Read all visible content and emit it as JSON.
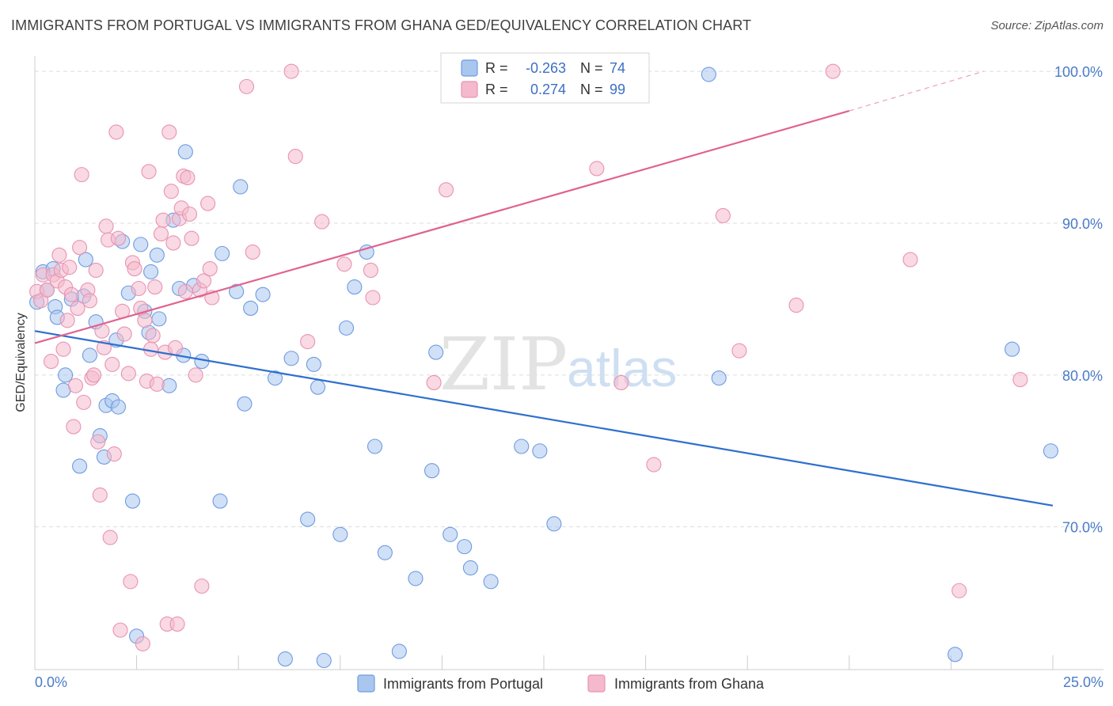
{
  "title": "IMMIGRANTS FROM PORTUGAL VS IMMIGRANTS FROM GHANA GED/EQUIVALENCY CORRELATION CHART",
  "source": "Source: ZipAtlas.com",
  "watermark": {
    "zip": "ZIP",
    "atlas": "atlas"
  },
  "colors": {
    "portugal_fill": "#a9c6ef",
    "portugal_stroke": "#6f9be0",
    "portugal_line": "#2e6fce",
    "ghana_fill": "#f4b9cc",
    "ghana_stroke": "#e993b1",
    "ghana_line": "#e0638f",
    "tick_color": "#4a7cc7",
    "grid": "#dddddd"
  },
  "legend_box": {
    "rows": [
      {
        "r_label": "R =",
        "r_value": "-0.263",
        "n_label": "N =",
        "n_value": "74"
      },
      {
        "r_label": "R =",
        "r_value": "0.274",
        "n_label": "N =",
        "n_value": "99"
      }
    ]
  },
  "chart_data": {
    "type": "scatter",
    "xlabel": "",
    "ylabel": "GED/Equivalency",
    "xlim": [
      0,
      25
    ],
    "ylim": [
      60.6,
      101.0
    ],
    "x_tick_labels": [
      "0.0%",
      "25.0%"
    ],
    "y_ticks": [
      70,
      80,
      90,
      100
    ],
    "y_tick_labels": [
      "70.0%",
      "80.0%",
      "90.0%",
      "100.0%"
    ],
    "grid": "horizontal dashed",
    "legend_position": "bottom",
    "series": [
      {
        "name": "Immigrants from Portugal",
        "color": "#a9c6ef",
        "r": -0.263,
        "n": 74,
        "trend": {
          "x": [
            0,
            25
          ],
          "y": [
            82.9,
            71.4
          ]
        },
        "points": [
          [
            0.05,
            84.8
          ],
          [
            0.2,
            86.8
          ],
          [
            0.3,
            85.6
          ],
          [
            0.45,
            87.0
          ],
          [
            0.5,
            84.5
          ],
          [
            0.55,
            83.8
          ],
          [
            0.7,
            79.0
          ],
          [
            0.75,
            80.0
          ],
          [
            0.9,
            85.0
          ],
          [
            1.1,
            74.0
          ],
          [
            1.2,
            85.2
          ],
          [
            1.25,
            87.6
          ],
          [
            1.35,
            81.3
          ],
          [
            1.5,
            83.5
          ],
          [
            1.6,
            76.0
          ],
          [
            1.7,
            74.6
          ],
          [
            1.75,
            78.0
          ],
          [
            1.9,
            78.3
          ],
          [
            2.0,
            82.3
          ],
          [
            2.05,
            77.9
          ],
          [
            2.15,
            88.8
          ],
          [
            2.3,
            85.4
          ],
          [
            2.4,
            71.7
          ],
          [
            2.5,
            62.8
          ],
          [
            2.6,
            88.6
          ],
          [
            2.7,
            84.2
          ],
          [
            2.8,
            82.8
          ],
          [
            2.85,
            86.8
          ],
          [
            3.0,
            87.9
          ],
          [
            3.05,
            83.7
          ],
          [
            3.3,
            79.3
          ],
          [
            3.4,
            90.2
          ],
          [
            3.55,
            85.7
          ],
          [
            3.65,
            81.3
          ],
          [
            3.7,
            94.7
          ],
          [
            3.9,
            85.9
          ],
          [
            4.1,
            80.9
          ],
          [
            4.55,
            71.7
          ],
          [
            4.6,
            88.0
          ],
          [
            4.95,
            85.5
          ],
          [
            5.05,
            92.4
          ],
          [
            5.15,
            78.1
          ],
          [
            5.3,
            84.4
          ],
          [
            5.6,
            85.3
          ],
          [
            5.9,
            79.8
          ],
          [
            6.15,
            61.3
          ],
          [
            6.3,
            81.1
          ],
          [
            6.7,
            70.5
          ],
          [
            6.85,
            80.7
          ],
          [
            6.95,
            79.2
          ],
          [
            7.1,
            61.2
          ],
          [
            7.5,
            69.5
          ],
          [
            7.65,
            83.1
          ],
          [
            7.85,
            85.8
          ],
          [
            8.15,
            88.1
          ],
          [
            8.35,
            75.3
          ],
          [
            8.6,
            68.3
          ],
          [
            8.95,
            61.8
          ],
          [
            9.35,
            66.6
          ],
          [
            9.75,
            73.7
          ],
          [
            9.85,
            81.5
          ],
          [
            10.2,
            69.5
          ],
          [
            10.55,
            68.7
          ],
          [
            10.7,
            67.3
          ],
          [
            11.2,
            66.4
          ],
          [
            11.95,
            75.3
          ],
          [
            12.4,
            75.0
          ],
          [
            12.75,
            70.2
          ],
          [
            13.85,
            100.0
          ],
          [
            16.55,
            99.8
          ],
          [
            16.8,
            79.8
          ],
          [
            22.6,
            61.6
          ],
          [
            24.0,
            81.7
          ],
          [
            24.95,
            75.0
          ]
        ]
      },
      {
        "name": "Immigrants from Ghana",
        "color": "#f4b9cc",
        "r": 0.274,
        "n": 99,
        "trend": {
          "x": [
            0,
            20
          ],
          "y": [
            82.1,
            97.4
          ]
        },
        "trend_ext": {
          "x": [
            20,
            23.3
          ],
          "y": [
            97.4,
            100.0
          ]
        },
        "points": [
          [
            0.05,
            85.5
          ],
          [
            0.15,
            84.9
          ],
          [
            0.2,
            86.6
          ],
          [
            0.3,
            85.6
          ],
          [
            0.4,
            80.9
          ],
          [
            0.45,
            86.6
          ],
          [
            0.55,
            86.2
          ],
          [
            0.6,
            87.9
          ],
          [
            0.65,
            86.9
          ],
          [
            0.7,
            81.7
          ],
          [
            0.75,
            85.8
          ],
          [
            0.8,
            83.6
          ],
          [
            0.85,
            87.1
          ],
          [
            0.9,
            85.3
          ],
          [
            0.95,
            76.6
          ],
          [
            1.0,
            79.3
          ],
          [
            1.05,
            84.4
          ],
          [
            1.1,
            88.4
          ],
          [
            1.15,
            93.2
          ],
          [
            1.2,
            78.2
          ],
          [
            1.3,
            85.6
          ],
          [
            1.35,
            84.9
          ],
          [
            1.4,
            79.8
          ],
          [
            1.45,
            80.0
          ],
          [
            1.5,
            86.9
          ],
          [
            1.55,
            75.6
          ],
          [
            1.6,
            72.1
          ],
          [
            1.65,
            82.9
          ],
          [
            1.7,
            81.8
          ],
          [
            1.75,
            89.8
          ],
          [
            1.8,
            88.9
          ],
          [
            1.85,
            69.3
          ],
          [
            1.9,
            80.7
          ],
          [
            1.95,
            74.8
          ],
          [
            2.0,
            96.0
          ],
          [
            2.05,
            89.0
          ],
          [
            2.1,
            63.2
          ],
          [
            2.15,
            84.2
          ],
          [
            2.2,
            82.7
          ],
          [
            2.3,
            80.1
          ],
          [
            2.35,
            66.4
          ],
          [
            2.4,
            87.4
          ],
          [
            2.45,
            87.0
          ],
          [
            2.55,
            85.7
          ],
          [
            2.6,
            84.4
          ],
          [
            2.65,
            62.3
          ],
          [
            2.7,
            83.6
          ],
          [
            2.75,
            79.6
          ],
          [
            2.8,
            93.4
          ],
          [
            2.85,
            81.7
          ],
          [
            2.9,
            82.6
          ],
          [
            2.95,
            85.8
          ],
          [
            3.0,
            79.4
          ],
          [
            3.1,
            89.3
          ],
          [
            3.15,
            90.2
          ],
          [
            3.2,
            81.5
          ],
          [
            3.25,
            63.6
          ],
          [
            3.3,
            96.0
          ],
          [
            3.35,
            92.1
          ],
          [
            3.4,
            88.7
          ],
          [
            3.45,
            81.8
          ],
          [
            3.5,
            63.6
          ],
          [
            3.55,
            90.3
          ],
          [
            3.6,
            91.0
          ],
          [
            3.65,
            93.1
          ],
          [
            3.7,
            85.5
          ],
          [
            3.75,
            93.0
          ],
          [
            3.8,
            90.6
          ],
          [
            3.85,
            89.0
          ],
          [
            3.95,
            80.0
          ],
          [
            4.05,
            85.6
          ],
          [
            4.1,
            66.1
          ],
          [
            4.15,
            86.2
          ],
          [
            4.25,
            91.3
          ],
          [
            4.3,
            87.0
          ],
          [
            4.35,
            85.1
          ],
          [
            5.2,
            99.0
          ],
          [
            5.35,
            88.1
          ],
          [
            6.3,
            100.0
          ],
          [
            6.4,
            94.4
          ],
          [
            6.7,
            82.2
          ],
          [
            7.05,
            90.1
          ],
          [
            7.6,
            87.3
          ],
          [
            8.25,
            86.9
          ],
          [
            8.3,
            85.1
          ],
          [
            9.8,
            79.5
          ],
          [
            10.1,
            92.2
          ],
          [
            11.3,
            100.0
          ],
          [
            12.8,
            99.9
          ],
          [
            13.8,
            93.6
          ],
          [
            14.4,
            79.5
          ],
          [
            15.2,
            74.1
          ],
          [
            16.9,
            90.5
          ],
          [
            17.3,
            81.6
          ],
          [
            18.7,
            84.6
          ],
          [
            19.6,
            100.0
          ],
          [
            21.5,
            87.6
          ],
          [
            22.7,
            65.8
          ],
          [
            24.2,
            79.7
          ]
        ]
      }
    ]
  }
}
